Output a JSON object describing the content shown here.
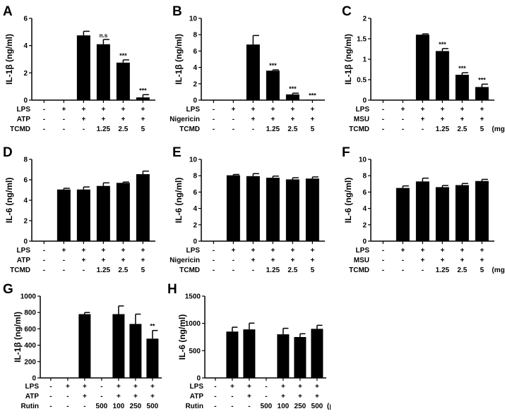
{
  "chart_data": [
    {
      "type": "bar",
      "panel": "A",
      "ylabel": "IL-1β (ng/ml)",
      "ylim": [
        0,
        6
      ],
      "ticks": [
        0,
        2,
        4,
        6
      ],
      "values": [
        0,
        0,
        4.75,
        4.1,
        2.75,
        0.2
      ],
      "errors": [
        0,
        0,
        0.3,
        0.35,
        0.2,
        0.2
      ],
      "sig": [
        "",
        "",
        "",
        "n.s",
        "***",
        "***"
      ],
      "rows": [
        {
          "name": "LPS",
          "cells": [
            "-",
            "+",
            "+",
            "+",
            "+",
            "+"
          ]
        },
        {
          "name": "ATP",
          "cells": [
            "-",
            "-",
            "+",
            "+",
            "+",
            "+"
          ]
        },
        {
          "name": "TCMD",
          "cells": [
            "-",
            "-",
            "-",
            "1.25",
            "2.5",
            "5"
          ]
        }
      ],
      "unit": ""
    },
    {
      "type": "bar",
      "panel": "B",
      "ylabel": "IL-1β (ng/ml)",
      "ylim": [
        0,
        10
      ],
      "ticks": [
        0,
        2,
        4,
        6,
        8,
        10
      ],
      "values": [
        0,
        0,
        6.8,
        3.6,
        0.7,
        0.05
      ],
      "errors": [
        0,
        0,
        1.1,
        0.1,
        0.15,
        0
      ],
      "sig": [
        "",
        "",
        "",
        "***",
        "***",
        "***"
      ],
      "rows": [
        {
          "name": "LPS",
          "cells": [
            "-",
            "+",
            "+",
            "+",
            "+",
            "+"
          ]
        },
        {
          "name": "Nigericin",
          "cells": [
            "-",
            "-",
            "+",
            "+",
            "+",
            "+"
          ]
        },
        {
          "name": "TCMD",
          "cells": [
            "-",
            "-",
            "-",
            "1.25",
            "2.5",
            "5"
          ]
        }
      ],
      "unit": ""
    },
    {
      "type": "bar",
      "panel": "C",
      "ylabel": "IL-1β (ng/ml)",
      "ylim": [
        0,
        2
      ],
      "ticks": [
        0,
        0.5,
        1.0,
        1.5,
        2.0
      ],
      "values": [
        0,
        0,
        1.6,
        1.2,
        0.62,
        0.32
      ],
      "errors": [
        0,
        0,
        0.02,
        0.06,
        0.05,
        0.07
      ],
      "sig": [
        "",
        "",
        "",
        "***",
        "***",
        "***"
      ],
      "rows": [
        {
          "name": "LPS",
          "cells": [
            "-",
            "+",
            "+",
            "+",
            "+",
            "+"
          ]
        },
        {
          "name": "MSU",
          "cells": [
            "-",
            "-",
            "+",
            "+",
            "+",
            "+"
          ]
        },
        {
          "name": "TCMD",
          "cells": [
            "-",
            "-",
            "-",
            "1.25",
            "2.5",
            "5"
          ]
        }
      ],
      "unit": "(mg/ml)"
    },
    {
      "type": "bar",
      "panel": "D",
      "ylabel": "IL-6 (ng/ml)",
      "ylim": [
        0,
        8
      ],
      "ticks": [
        0,
        2,
        4,
        6,
        8
      ],
      "values": [
        0,
        5.05,
        5.05,
        5.4,
        5.7,
        6.55
      ],
      "errors": [
        0,
        0.12,
        0.25,
        0.3,
        0.08,
        0.3
      ],
      "sig": [
        "",
        "",
        "",
        "",
        "",
        ""
      ],
      "rows": [
        {
          "name": "LPS",
          "cells": [
            "-",
            "+",
            "+",
            "+",
            "+",
            "+"
          ]
        },
        {
          "name": "ATP",
          "cells": [
            "-",
            "-",
            "+",
            "+",
            "+",
            "+"
          ]
        },
        {
          "name": "TCMD",
          "cells": [
            "-",
            "-",
            "-",
            "1.25",
            "2.5",
            "5"
          ]
        }
      ],
      "unit": ""
    },
    {
      "type": "bar",
      "panel": "E",
      "ylabel": "IL-6 (ng/ml)",
      "ylim": [
        0,
        10
      ],
      "ticks": [
        0,
        2,
        4,
        6,
        8,
        10
      ],
      "values": [
        0,
        8.05,
        7.95,
        7.75,
        7.55,
        7.65
      ],
      "errors": [
        0,
        0.1,
        0.3,
        0.2,
        0.2,
        0.2
      ],
      "sig": [
        "",
        "",
        "",
        "",
        "",
        ""
      ],
      "rows": [
        {
          "name": "LPS",
          "cells": [
            "-",
            "+",
            "+",
            "+",
            "+",
            "+"
          ]
        },
        {
          "name": "Nigericin",
          "cells": [
            "-",
            "-",
            "+",
            "+",
            "+",
            "+"
          ]
        },
        {
          "name": "TCMD",
          "cells": [
            "-",
            "-",
            "-",
            "1.25",
            "2.5",
            "5"
          ]
        }
      ],
      "unit": ""
    },
    {
      "type": "bar",
      "panel": "F",
      "ylabel": "IL-6 (ng/ml)",
      "ylim": [
        0,
        10
      ],
      "ticks": [
        0,
        2,
        4,
        6,
        8,
        10
      ],
      "values": [
        0,
        6.5,
        7.3,
        6.6,
        6.85,
        7.35
      ],
      "errors": [
        0,
        0.25,
        0.4,
        0.2,
        0.2,
        0.2
      ],
      "sig": [
        "",
        "",
        "",
        "",
        "",
        ""
      ],
      "rows": [
        {
          "name": "LPS",
          "cells": [
            "-",
            "+",
            "+",
            "+",
            "+",
            "+"
          ]
        },
        {
          "name": "MSU",
          "cells": [
            "-",
            "-",
            "+",
            "+",
            "+",
            "+"
          ]
        },
        {
          "name": "TCMD",
          "cells": [
            "-",
            "-",
            "-",
            "1.25",
            "2.5",
            "5"
          ]
        }
      ],
      "unit": "(mg/ml)"
    },
    {
      "type": "bar",
      "panel": "G",
      "ylabel": "IL-1β (ng/ml)",
      "ylim": [
        0,
        1000
      ],
      "ticks": [
        0,
        200,
        400,
        600,
        800,
        1000
      ],
      "values": [
        0,
        0,
        780,
        0,
        780,
        660,
        480
      ],
      "errors": [
        0,
        0,
        20,
        0,
        100,
        120,
        100
      ],
      "sig": [
        "",
        "",
        "",
        "",
        "",
        "",
        "**"
      ],
      "rows": [
        {
          "name": "LPS",
          "cells": [
            "-",
            "+",
            "+",
            "-",
            "+",
            "+",
            "+"
          ]
        },
        {
          "name": "ATP",
          "cells": [
            "-",
            "-",
            "+",
            "-",
            "+",
            "+",
            "+"
          ]
        },
        {
          "name": "Rutin",
          "cells": [
            "-",
            "-",
            "-",
            "500",
            "100",
            "250",
            "500"
          ]
        }
      ],
      "unit": ""
    },
    {
      "type": "bar",
      "panel": "H",
      "ylabel": "IL-6 (ng/ml)",
      "ylim": [
        0,
        1500
      ],
      "ticks": [
        0,
        500,
        1000,
        1500
      ],
      "values": [
        0,
        850,
        890,
        0,
        800,
        750,
        900
      ],
      "errors": [
        0,
        80,
        115,
        0,
        110,
        60,
        65
      ],
      "sig": [
        "",
        "",
        "",
        "",
        "",
        "",
        ""
      ],
      "rows": [
        {
          "name": "LPS",
          "cells": [
            "-",
            "+",
            "+",
            "-",
            "+",
            "+",
            "+"
          ]
        },
        {
          "name": "ATP",
          "cells": [
            "-",
            "-",
            "+",
            "-",
            "+",
            "+",
            "+"
          ]
        },
        {
          "name": "Rutin",
          "cells": [
            "-",
            "-",
            "-",
            "500",
            "100",
            "250",
            "500"
          ]
        }
      ],
      "unit": "(μM)"
    }
  ]
}
